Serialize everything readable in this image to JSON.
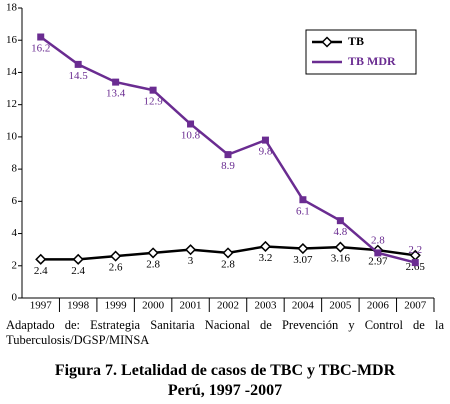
{
  "chart_data": {
    "type": "line",
    "categories": [
      "1997",
      "1998",
      "1999",
      "2000",
      "2001",
      "2002",
      "2003",
      "2004",
      "2005",
      "2006",
      "2007"
    ],
    "series": [
      {
        "name": "TB",
        "color": "#000000",
        "marker": "diamond",
        "values": [
          2.4,
          2.4,
          2.6,
          2.8,
          3,
          2.8,
          3.2,
          3.07,
          3.16,
          2.97,
          2.65
        ]
      },
      {
        "name": "TB MDR",
        "color": "#6a2c91",
        "marker": "square",
        "values": [
          16.2,
          14.5,
          13.4,
          12.9,
          10.8,
          8.9,
          9.8,
          6.1,
          4.8,
          2.8,
          2.2
        ]
      }
    ],
    "ylim": [
      0,
      18
    ],
    "yticks": [
      0,
      2,
      4,
      6,
      8,
      10,
      12,
      14,
      16,
      18
    ],
    "legend": "top-right",
    "source": "Adaptado de:  Estrategia Sanitaria Nacional de Prevención y Control de  la Tuberculosis/DGSP/MINSA",
    "caption": [
      "Figura 7.   Letalidad de casos de TBC y TBC-MDR",
      "Perú, 1997 -2007"
    ]
  }
}
